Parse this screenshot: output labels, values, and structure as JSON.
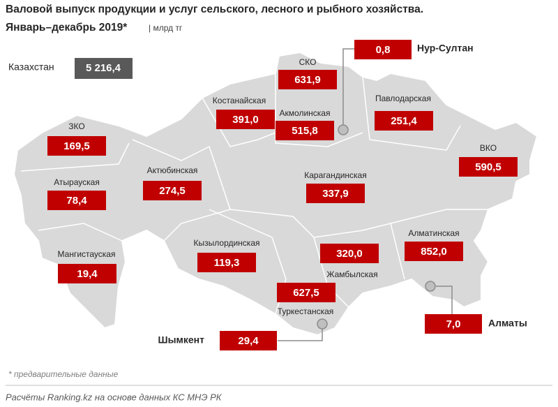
{
  "header": {
    "title": "Валовой выпуск продукции и услуг сельского, лесного и рыбного хозяйства.",
    "subtitle": "Январь–декабрь 2019*",
    "unit": "| млрд тг"
  },
  "total": {
    "name": "Казахстан",
    "value": "5 216,4"
  },
  "regions": [
    {
      "name": "ЗКО",
      "value": "169,5"
    },
    {
      "name": "Атырауская",
      "value": "78,4"
    },
    {
      "name": "Мангистауская",
      "value": "19,4"
    },
    {
      "name": "Актюбинская",
      "value": "274,5"
    },
    {
      "name": "Костанайская",
      "value": "391,0"
    },
    {
      "name": "СКО",
      "value": "631,9"
    },
    {
      "name": "Акмолинская",
      "value": "515,8"
    },
    {
      "name": "Павлодарская",
      "value": "251,4"
    },
    {
      "name": "ВКО",
      "value": "590,5"
    },
    {
      "name": "Карагандинская",
      "value": "337,9"
    },
    {
      "name": "Кызылординская",
      "value": "119,3"
    },
    {
      "name": "Алматинская",
      "value": "852,0"
    },
    {
      "name": "Жамбылская",
      "value": "320,0"
    },
    {
      "name": "Туркестанская",
      "value": "627,5"
    }
  ],
  "cities": [
    {
      "name": "Нур-Султан",
      "value": "0,8"
    },
    {
      "name": "Алматы",
      "value": "7,0"
    },
    {
      "name": "Шымкент",
      "value": "29,4"
    }
  ],
  "footnote": "* предварительные данные",
  "source": "Расчёты Ranking.kz на основе данных КС МНЭ РК"
}
